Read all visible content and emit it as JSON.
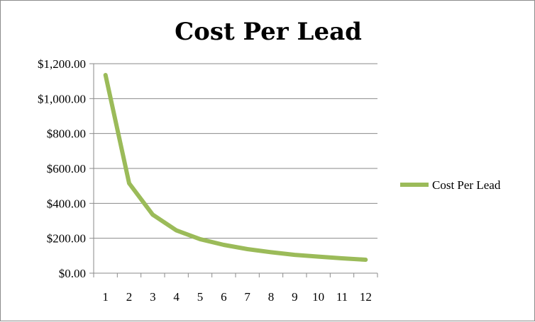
{
  "chart_data": {
    "type": "line",
    "title": "Cost Per Lead",
    "xlabel": "",
    "ylabel": "",
    "categories": [
      "1",
      "2",
      "3",
      "4",
      "5",
      "6",
      "7",
      "8",
      "9",
      "10",
      "11",
      "12"
    ],
    "series": [
      {
        "name": "Cost Per Lead",
        "color": "#9BBB59",
        "values": [
          1135,
          515,
          335,
          245,
          195,
          162,
          138,
          120,
          105,
          95,
          85,
          77
        ]
      }
    ],
    "ylim": [
      0,
      1200
    ],
    "yticks": [
      0,
      200,
      400,
      600,
      800,
      1000,
      1200
    ],
    "ytick_labels": [
      "$0.00",
      "$200.00",
      "$400.00",
      "$600.00",
      "$800.00",
      "$1,000.00",
      "$1,200.00"
    ],
    "grid": "horizontal",
    "legend": "right"
  }
}
